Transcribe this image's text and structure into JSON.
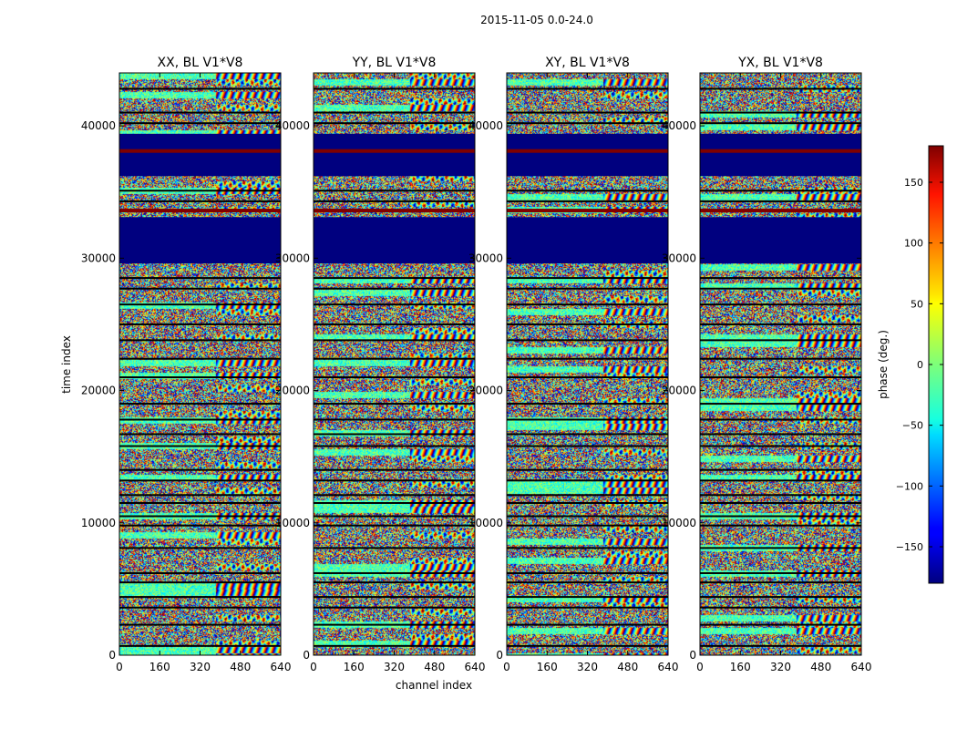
{
  "figure": {
    "suptitle": "2015-11-05 0.0-24.0"
  },
  "chart_data": {
    "type": "heatmap",
    "xlabel": "channel index",
    "ylabel": "time index",
    "xlim": [
      0,
      640
    ],
    "ylim": [
      0,
      44000
    ],
    "x_ticks": [
      0,
      160,
      320,
      480,
      640
    ],
    "y_ticks": [
      0,
      10000,
      20000,
      30000,
      40000
    ],
    "panels": [
      {
        "title": "XX, BL V1*V8"
      },
      {
        "title": "YY, BL V1*V8"
      },
      {
        "title": "XY, BL V1*V8"
      },
      {
        "title": "YX, BL V1*V8"
      }
    ],
    "colorbar": {
      "label": "phase (deg.)",
      "range": [
        -180,
        180
      ],
      "ticks": [
        -150,
        -100,
        -50,
        0,
        50,
        100,
        150
      ],
      "tick_labels": [
        "−150",
        "−100",
        "−50",
        "0",
        "50",
        "100",
        "150"
      ],
      "colormap": "jet"
    },
    "masked_time_ranges": [
      [
        29600,
        33100
      ],
      [
        36200,
        39400
      ]
    ],
    "masked_phase_deg": -180,
    "saturated_lines_time": [
      33600,
      38100
    ],
    "saturated_phase_deg": 180,
    "flag_lines_time": [
      700,
      2300,
      3600,
      4400,
      5500,
      6200,
      8100,
      9800,
      10500,
      11500,
      12100,
      13200,
      14000,
      15800,
      16700,
      17800,
      19000,
      21000,
      22400,
      23800,
      25000,
      26500,
      27700,
      28500,
      34300,
      35100,
      40200,
      41000,
      42800
    ],
    "segment_boundary_channel": 380
  },
  "colors": {
    "masked": "#00007f",
    "saturated": "#7f0000",
    "flag_line": "#000000"
  }
}
